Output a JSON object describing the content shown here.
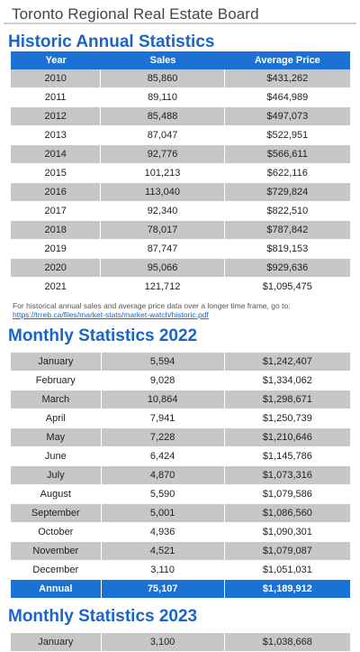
{
  "board_title": "Toronto Regional Real Estate Board",
  "historic": {
    "title": "Historic Annual Statistics",
    "headers": [
      "Year",
      "Sales",
      "Average Price"
    ],
    "rows": [
      [
        "2010",
        "85,860",
        "$431,262"
      ],
      [
        "2011",
        "89,110",
        "$464,989"
      ],
      [
        "2012",
        "85,488",
        "$497,073"
      ],
      [
        "2013",
        "87,047",
        "$522,951"
      ],
      [
        "2014",
        "92,776",
        "$566,611"
      ],
      [
        "2015",
        "101,213",
        "$622,116"
      ],
      [
        "2016",
        "113,040",
        "$729,824"
      ],
      [
        "2017",
        "92,340",
        "$822,510"
      ],
      [
        "2018",
        "78,017",
        "$787,842"
      ],
      [
        "2019",
        "87,747",
        "$819,153"
      ],
      [
        "2020",
        "95,066",
        "$929,636"
      ],
      [
        "2021",
        "121,712",
        "$1,095,475"
      ]
    ],
    "note_text": "For historical annual sales and average price data over a longer time frame, go to:",
    "note_link": "https://trreb.ca/files/market-stats/market-watch/historic.pdf"
  },
  "monthly_2022": {
    "title": "Monthly Statistics 2022",
    "rows": [
      [
        "January",
        "5,594",
        "$1,242,407"
      ],
      [
        "February",
        "9,028",
        "$1,334,062"
      ],
      [
        "March",
        "10,864",
        "$1,298,671"
      ],
      [
        "April",
        "7,941",
        "$1,250,739"
      ],
      [
        "May",
        "7,228",
        "$1,210,646"
      ],
      [
        "June",
        "6,424",
        "$1,145,786"
      ],
      [
        "July",
        "4,870",
        "$1,073,316"
      ],
      [
        "August",
        "5,590",
        "$1,079,586"
      ],
      [
        "September",
        "5,001",
        "$1,086,560"
      ],
      [
        "October",
        "4,936",
        "$1,090,301"
      ],
      [
        "November",
        "4,521",
        "$1,079,087"
      ],
      [
        "December",
        "3,110",
        "$1,051,031"
      ]
    ],
    "annual": [
      "Annual",
      "75,107",
      "$1,189,912"
    ]
  },
  "monthly_2023": {
    "title": "Monthly Statistics 2023",
    "rows": [
      [
        "January",
        "3,100",
        "$1,038,668"
      ]
    ]
  }
}
